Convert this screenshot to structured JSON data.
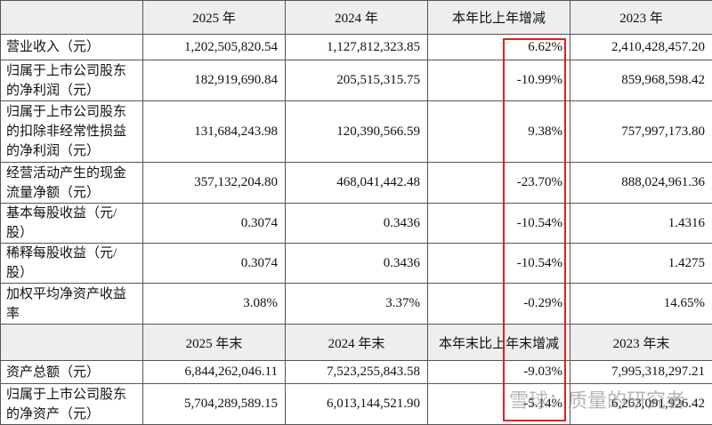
{
  "sections": [
    {
      "header": [
        "2025 年",
        "2024 年",
        "本年比上年增减",
        "2023 年"
      ],
      "rows": [
        {
          "label": [
            "营业收入（元）"
          ],
          "values": [
            "1,202,505,820.54",
            "1,127,812,323.85",
            "6.62%",
            "2,410,428,457.20"
          ]
        },
        {
          "label": [
            "归属于上市公司股东",
            "的净利润（元）"
          ],
          "values": [
            "182,919,690.84",
            "205,515,315.75",
            "-10.99%",
            "859,968,598.42"
          ]
        },
        {
          "label": [
            "归属于上市公司股东",
            "的扣除非经常性损益",
            "的净利润（元）"
          ],
          "values": [
            "131,684,243.98",
            "120,390,566.59",
            "9.38%",
            "757,997,173.80"
          ]
        },
        {
          "label": [
            "经营活动产生的现金",
            "流量净额（元）"
          ],
          "values": [
            "357,132,204.80",
            "468,041,442.48",
            "-23.70%",
            "888,024,961.36"
          ]
        },
        {
          "label": [
            "基本每股收益（元/",
            "股）"
          ],
          "values": [
            "0.3074",
            "0.3436",
            "-10.54%",
            "1.4316"
          ]
        },
        {
          "label": [
            "稀释每股收益（元/",
            "股）"
          ],
          "values": [
            "0.3074",
            "0.3436",
            "-10.54%",
            "1.4275"
          ]
        },
        {
          "label": [
            "加权平均净资产收益",
            "率"
          ],
          "values": [
            "3.08%",
            "3.37%",
            "-0.29%",
            "14.65%"
          ]
        }
      ]
    },
    {
      "header": [
        "2025 年末",
        "2024 年末",
        "本年末比上年末增减",
        "2023 年末"
      ],
      "rows": [
        {
          "label": [
            "资产总额（元）"
          ],
          "values": [
            "6,844,262,046.11",
            "7,523,255,843.58",
            "-9.03%",
            "7,995,318,297.21"
          ]
        },
        {
          "label": [
            "归属于上市公司股东",
            "的净资产（元）"
          ],
          "values": [
            "5,704,289,589.15",
            "6,013,144,521.90",
            "-5.14%",
            "6,263,091,926.42"
          ]
        }
      ]
    }
  ],
  "watermark": "雪球：质量的研究者"
}
